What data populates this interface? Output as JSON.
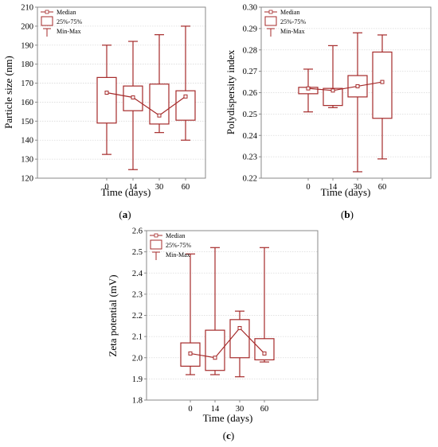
{
  "colors": {
    "series": "#a52a2a",
    "frame": "#8a8a8a",
    "grid": "#d9d9d9",
    "text": "#000000"
  },
  "legend": {
    "median": "Median",
    "box": "25%-75%",
    "whisker": "Min-Max"
  },
  "chart_data": [
    {
      "type": "box",
      "panel_label": "(a)",
      "xlabel": "Time (days)",
      "ylabel": "Particle size (nm)",
      "categories": [
        "0",
        "14",
        "30",
        "60"
      ],
      "ylim": [
        120,
        210
      ],
      "yticks": [
        "120",
        "130",
        "140",
        "150",
        "160",
        "170",
        "180",
        "190",
        "200",
        "210"
      ],
      "legend_position": "top-left",
      "grid": true,
      "boxes": [
        {
          "min": 132.5,
          "q1": 149,
          "median": 165,
          "q3": 173,
          "max": 190
        },
        {
          "min": 124.5,
          "q1": 155.5,
          "median": 162.5,
          "q3": 168.5,
          "max": 192
        },
        {
          "min": 144,
          "q1": 148.5,
          "median": 153,
          "q3": 169.5,
          "max": 195.5
        },
        {
          "min": 140,
          "q1": 150.5,
          "median": 163,
          "q3": 166,
          "max": 200
        }
      ]
    },
    {
      "type": "box",
      "panel_label": "(b)",
      "xlabel": "Time (days)",
      "ylabel": "Polydispersity index",
      "categories": [
        "0",
        "14",
        "30",
        "60"
      ],
      "ylim": [
        0.22,
        0.3
      ],
      "yticks": [
        "0.22",
        "0.23",
        "0.24",
        "0.25",
        "0.26",
        "0.27",
        "0.28",
        "0.29",
        "0.30"
      ],
      "legend_position": "top-left",
      "grid": true,
      "boxes": [
        {
          "min": 0.251,
          "q1": 0.2595,
          "median": 0.262,
          "q3": 0.2625,
          "max": 0.271
        },
        {
          "min": 0.253,
          "q1": 0.254,
          "median": 0.261,
          "q3": 0.262,
          "max": 0.282
        },
        {
          "min": 0.223,
          "q1": 0.258,
          "median": 0.263,
          "q3": 0.268,
          "max": 0.288
        },
        {
          "min": 0.229,
          "q1": 0.248,
          "median": 0.265,
          "q3": 0.279,
          "max": 0.287
        }
      ]
    },
    {
      "type": "box",
      "panel_label": "(c)",
      "xlabel": "Time (days)",
      "ylabel": "Zeta potential (mV)",
      "categories": [
        "0",
        "14",
        "30",
        "60"
      ],
      "ylim": [
        1.8,
        2.6
      ],
      "yticks": [
        "1.8",
        "1.9",
        "2.0",
        "2.1",
        "2.2",
        "2.3",
        "2.4",
        "2.5",
        "2.6"
      ],
      "legend_position": "top-left",
      "grid": true,
      "boxes": [
        {
          "min": 1.92,
          "q1": 1.96,
          "median": 2.02,
          "q3": 2.07,
          "max": 2.49
        },
        {
          "min": 1.92,
          "q1": 1.94,
          "median": 2.0,
          "q3": 2.13,
          "max": 2.52
        },
        {
          "min": 1.91,
          "q1": 2.0,
          "median": 2.14,
          "q3": 2.18,
          "max": 2.22
        },
        {
          "min": 1.98,
          "q1": 1.99,
          "median": 2.02,
          "q3": 2.09,
          "max": 2.52
        }
      ]
    }
  ]
}
